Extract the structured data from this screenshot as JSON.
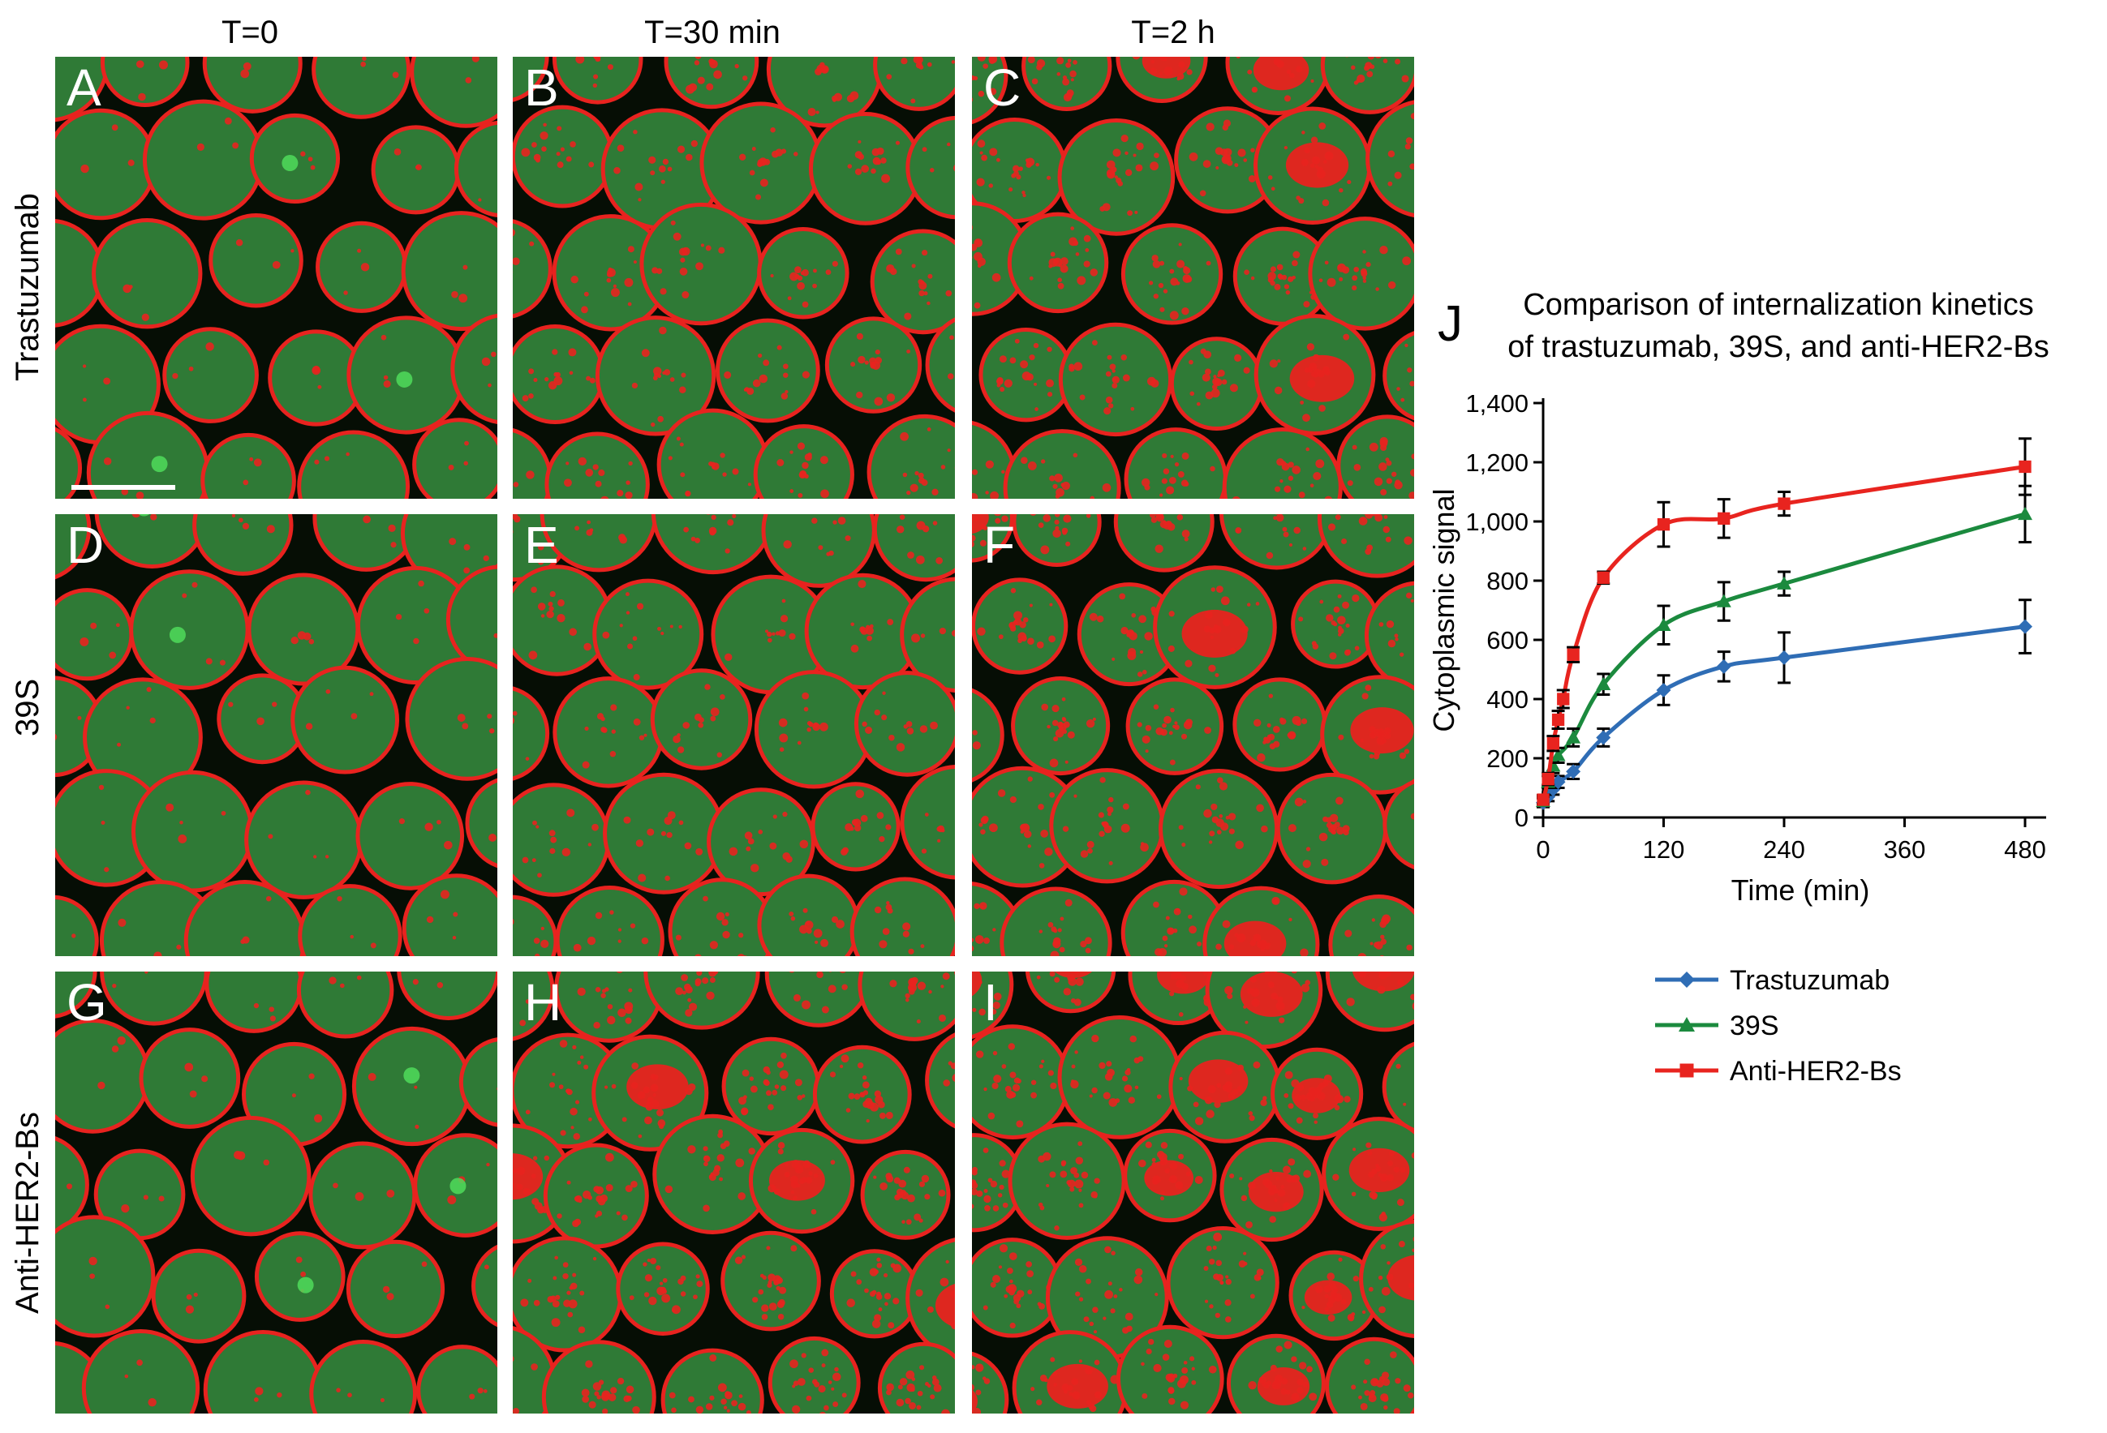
{
  "columns": [
    "T=0",
    "T=30 min",
    "T=2 h"
  ],
  "rows": [
    "Trastuzumab",
    "39S",
    "Anti-HER2-Bs"
  ],
  "panels": [
    "A",
    "B",
    "C",
    "D",
    "E",
    "F",
    "G",
    "H",
    "I"
  ],
  "panel_letter_J": "J",
  "colors": {
    "membrane": "#e8231f",
    "cytoplasm": "#2f7a36",
    "background": "#060e05",
    "trastuzumab": "#2f6db5",
    "s39": "#1b8a3e",
    "bs": "#e8241f"
  },
  "chart_data": {
    "type": "line",
    "title_lines": [
      "Comparison of internalization kinetics",
      "of trastuzumab, 39S, and anti-HER2-Bs"
    ],
    "xlabel": "Time (min)",
    "ylabel": "Cytoplasmic signal",
    "xlim": [
      0,
      480
    ],
    "ylim": [
      0,
      1400
    ],
    "xticks": [
      0,
      120,
      240,
      360,
      480
    ],
    "xtick_labels": [
      "0",
      "120",
      "240",
      "360",
      "480"
    ],
    "yticks": [
      0,
      200,
      400,
      600,
      800,
      1000,
      1200,
      1400
    ],
    "ytick_labels": [
      "0",
      "200",
      "400",
      "600",
      "800",
      "1,000",
      "1,200",
      "1,400"
    ],
    "legend_position": "bottom",
    "series": [
      {
        "name": "Trastuzumab",
        "marker": "diamond",
        "color": "#2f6db5",
        "x": [
          0,
          5,
          10,
          15,
          30,
          60,
          120,
          180,
          240,
          480
        ],
        "y": [
          50,
          70,
          95,
          120,
          155,
          270,
          430,
          510,
          540,
          645
        ],
        "err": [
          15,
          15,
          18,
          20,
          25,
          30,
          50,
          50,
          85,
          90
        ]
      },
      {
        "name": "39S",
        "marker": "triangle",
        "color": "#1b8a3e",
        "x": [
          0,
          5,
          10,
          15,
          30,
          60,
          120,
          180,
          240,
          480
        ],
        "y": [
          55,
          120,
          175,
          210,
          270,
          450,
          650,
          730,
          790,
          1025
        ],
        "err": [
          15,
          20,
          25,
          25,
          30,
          35,
          65,
          65,
          40,
          95
        ]
      },
      {
        "name": "Anti-HER2-Bs",
        "marker": "square",
        "color": "#e8241f",
        "x": [
          0,
          5,
          10,
          15,
          20,
          30,
          60,
          120,
          180,
          240,
          480
        ],
        "y": [
          60,
          130,
          250,
          330,
          400,
          550,
          810,
          990,
          1010,
          1060,
          1185
        ],
        "err": [
          15,
          20,
          25,
          30,
          30,
          25,
          20,
          75,
          65,
          40,
          95
        ]
      }
    ]
  }
}
